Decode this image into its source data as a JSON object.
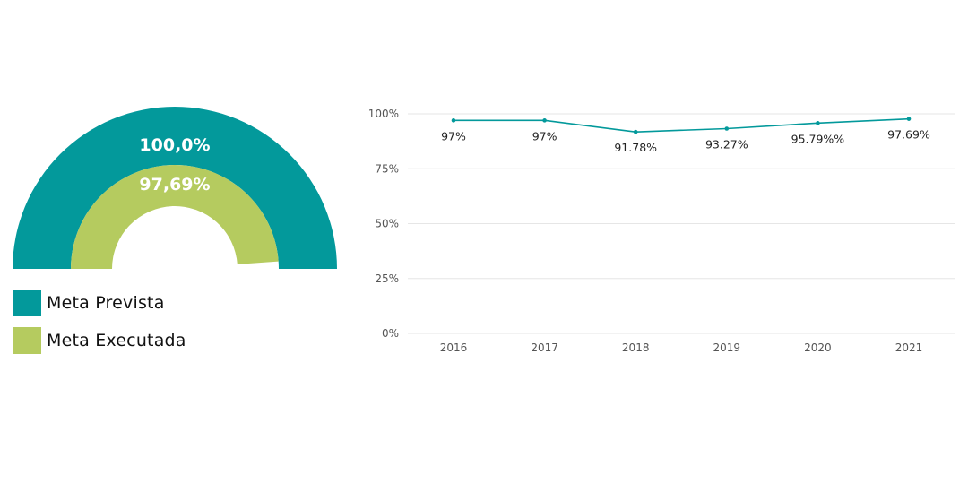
{
  "chart_data": [
    {
      "type": "gauge",
      "series": [
        {
          "name": "Meta Prevista",
          "value": 100.0,
          "label": "100,0%",
          "color": "#03999B"
        },
        {
          "name": "Meta Executada",
          "value": 97.69,
          "label": "97,69%",
          "color": "#B5CB5F"
        }
      ],
      "range": [
        0,
        100
      ]
    },
    {
      "type": "line",
      "x": [
        "2016",
        "2017",
        "2018",
        "2019",
        "2020",
        "2021"
      ],
      "series": [
        {
          "values": [
            97,
            97,
            91.78,
            93.27,
            95.79,
            97.69
          ],
          "labels": [
            "97%",
            "97%",
            "91.78%",
            "93.27%",
            "95.79%%",
            "97.69%"
          ],
          "color": "#03999B"
        }
      ],
      "ylim": [
        0,
        100
      ],
      "yticks": [
        "0%",
        "25%",
        "50%",
        "75%",
        "100%"
      ],
      "grid": true
    }
  ]
}
